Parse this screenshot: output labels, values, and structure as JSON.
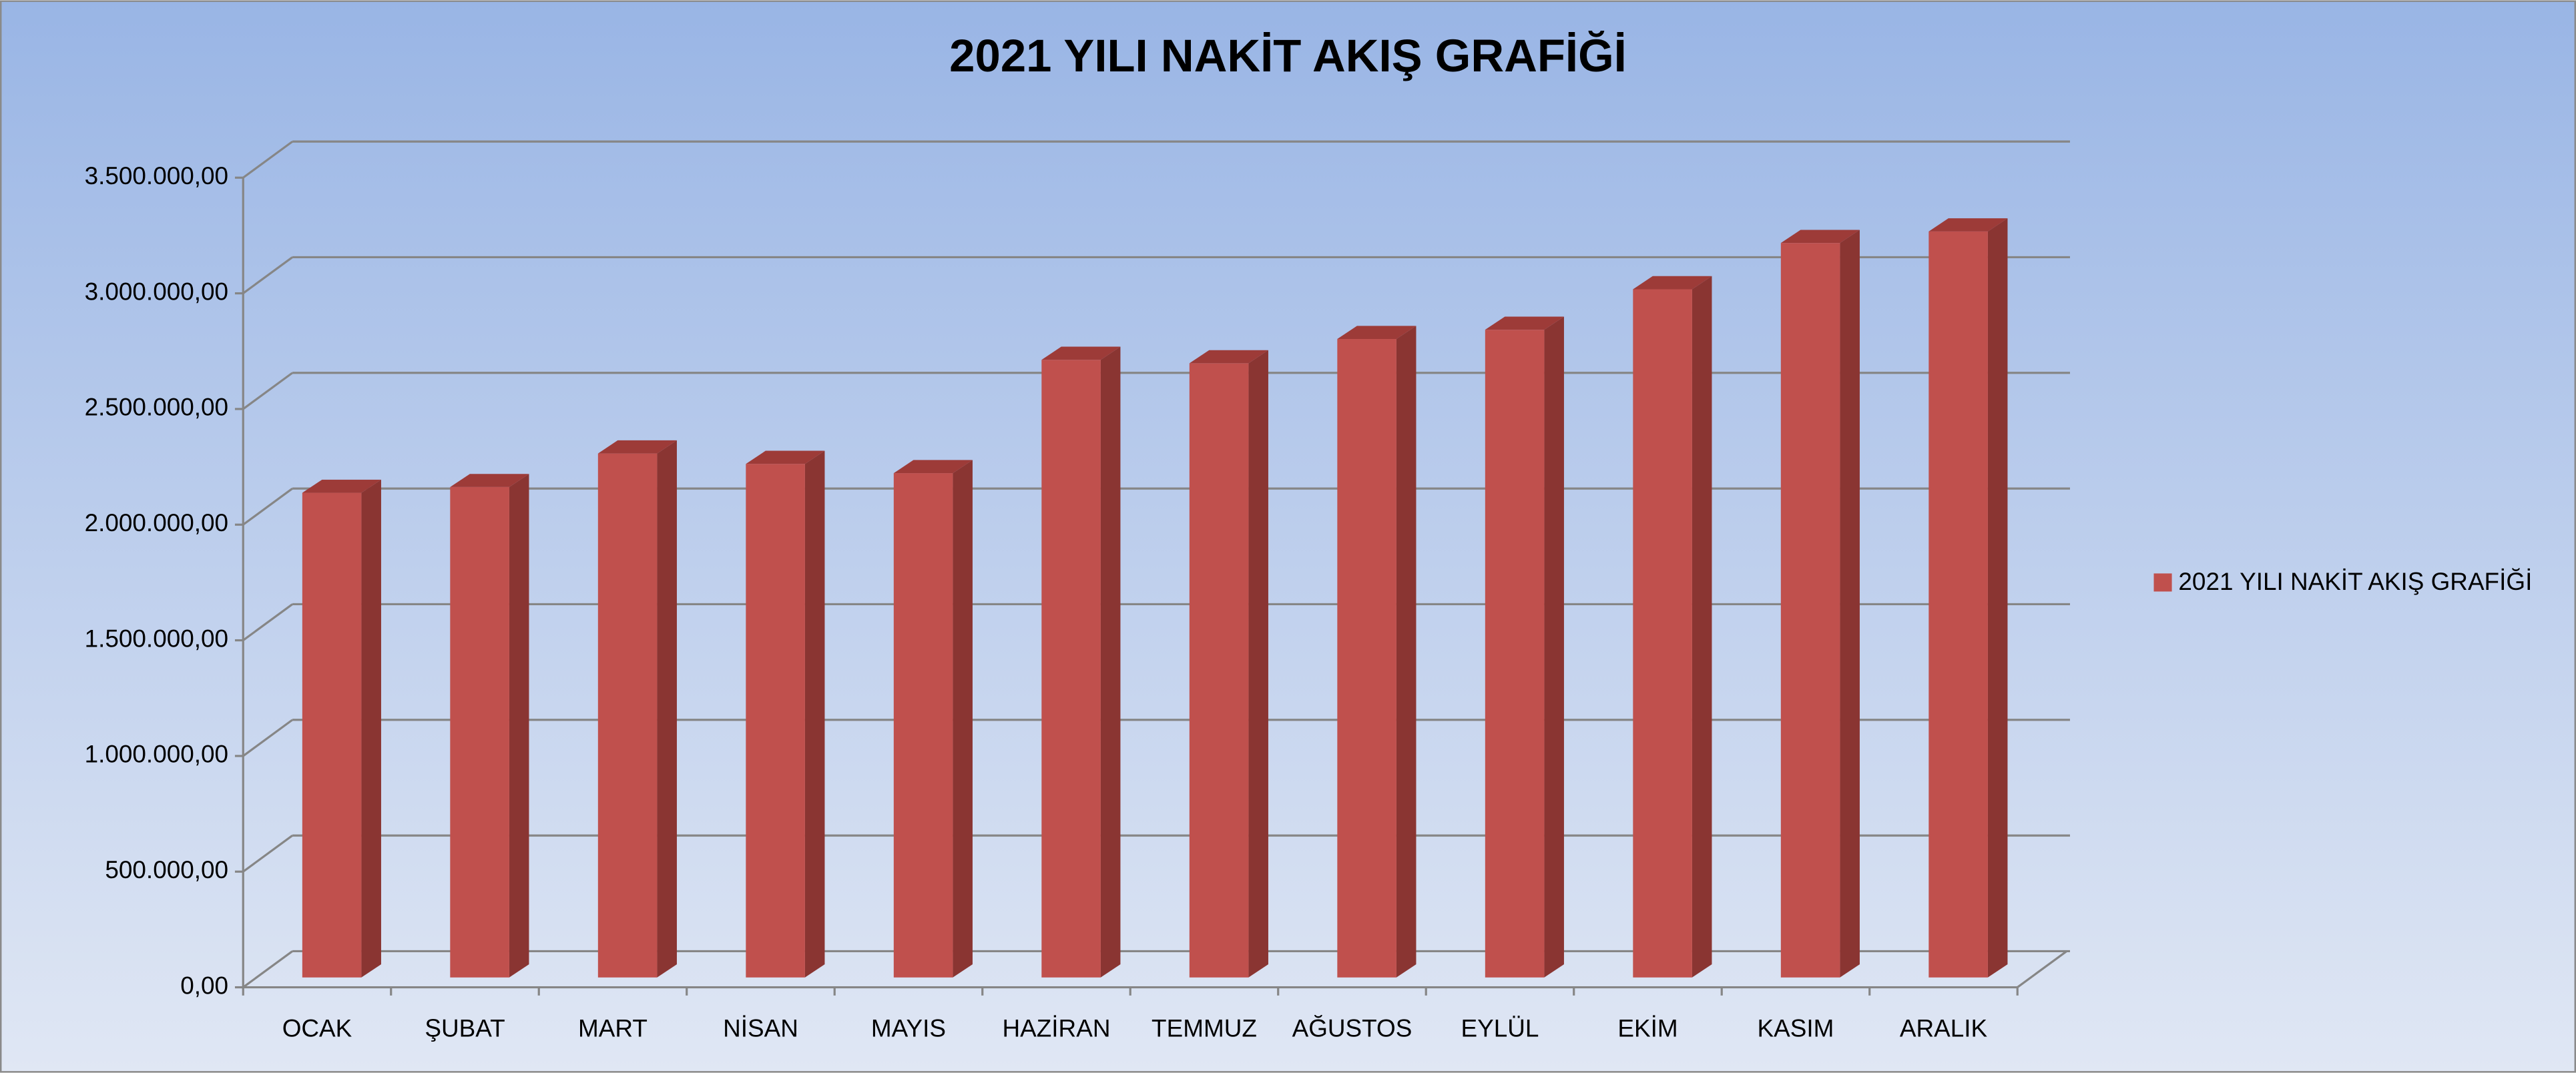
{
  "chart_data": {
    "type": "bar3d",
    "title": "2021 YILI NAKİT AKIŞ GRAFİĞİ",
    "categories": [
      "OCAK",
      "ŞUBAT",
      "MART",
      "NİSAN",
      "MAYIS",
      "HAZİRAN",
      "TEMMUZ",
      "AĞUSTOS",
      "EYLÜL",
      "EKİM",
      "KASIM",
      "ARALIK"
    ],
    "series": [
      {
        "name": "2021 YILI NAKİT AKIŞ GRAFİĞİ",
        "color": "#c0504d",
        "values": [
          2095000,
          2120000,
          2265000,
          2220000,
          2180000,
          2670000,
          2655000,
          2760000,
          2800000,
          2975000,
          3175000,
          3225000
        ]
      }
    ],
    "ylim": [
      0,
      3500000
    ],
    "yticks": [
      {
        "value": 0,
        "label": "0,00"
      },
      {
        "value": 500000,
        "label": "500.000,00"
      },
      {
        "value": 1000000,
        "label": "1.000.000,00"
      },
      {
        "value": 1500000,
        "label": "1.500.000,00"
      },
      {
        "value": 2000000,
        "label": "2.000.000,00"
      },
      {
        "value": 2500000,
        "label": "2.500.000,00"
      },
      {
        "value": 3000000,
        "label": "3.000.000,00"
      },
      {
        "value": 3500000,
        "label": "3.500.000,00"
      }
    ],
    "grid": true,
    "legend": "right"
  }
}
